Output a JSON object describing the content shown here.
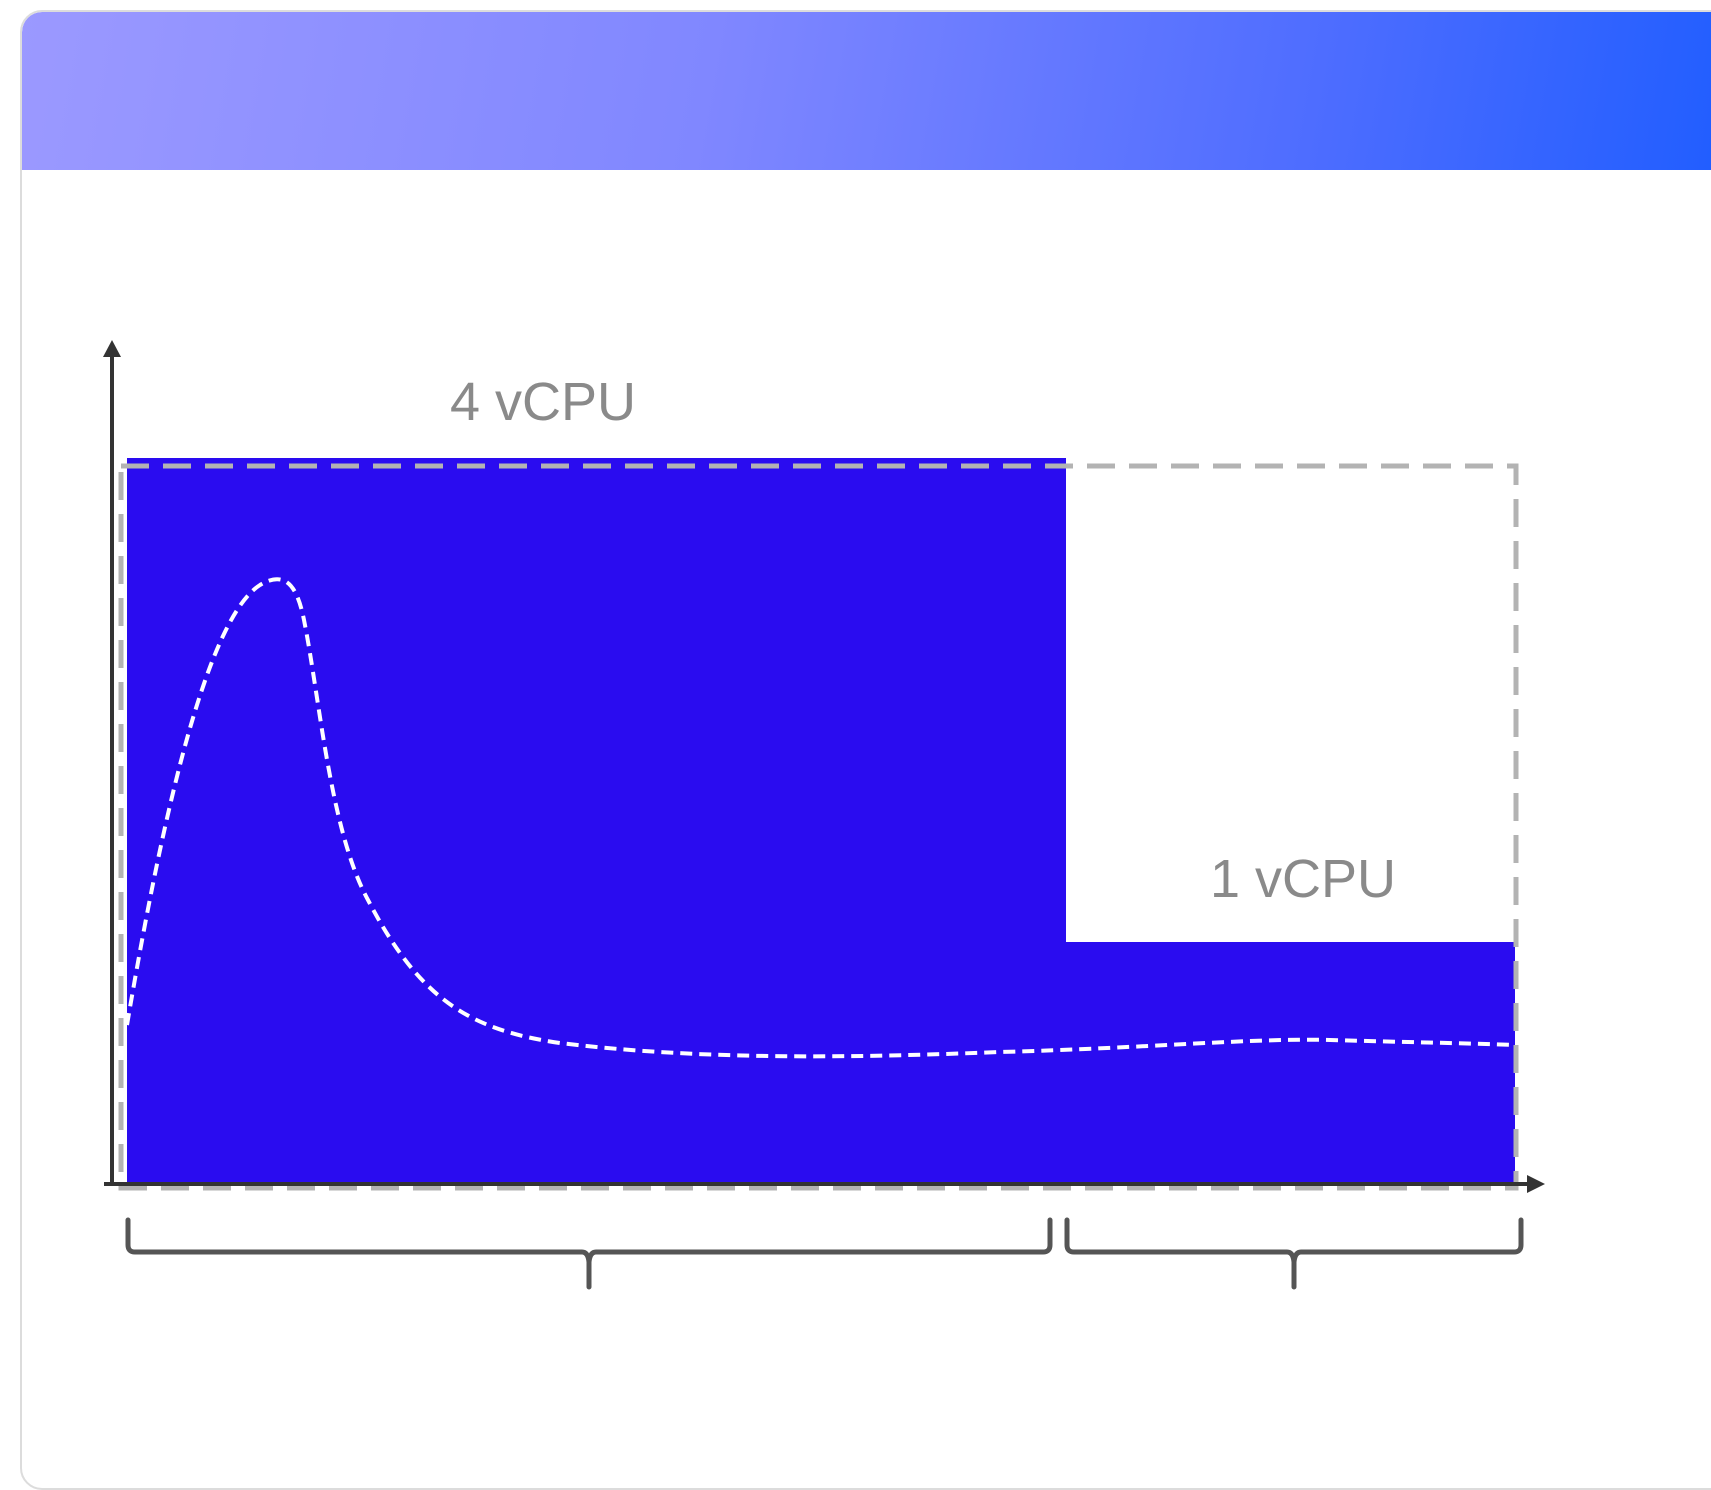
{
  "header": {
    "title": ""
  },
  "diagram": {
    "label_high": "4 vCPU",
    "label_low": "1 vCPU",
    "colors": {
      "fill": "#2a0cf0",
      "dashed_outline": "#b3b3b3",
      "curve": "#ffffff",
      "axes": "#333333",
      "braces": "#555555",
      "header_gradient_start": "#9b99ff",
      "header_gradient_end": "#1f5dff"
    }
  }
}
